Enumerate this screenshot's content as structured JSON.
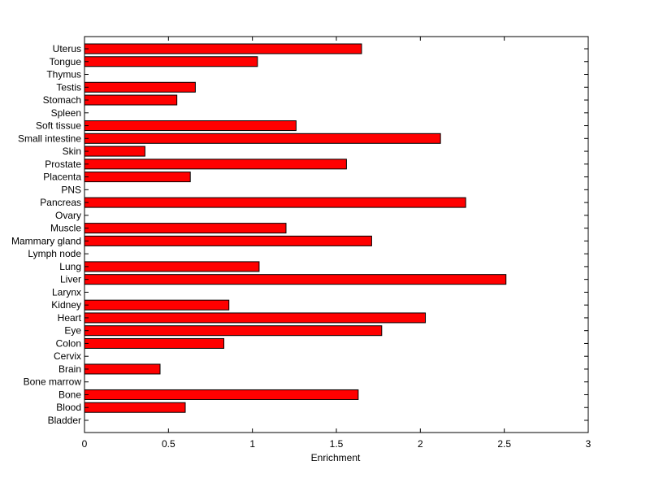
{
  "chart_data": {
    "type": "bar",
    "orientation": "horizontal",
    "title": "",
    "xlabel": "Enrichment",
    "ylabel": "",
    "xlim": [
      0,
      3
    ],
    "xticks": [
      0,
      0.5,
      1,
      1.5,
      2,
      2.5,
      3
    ],
    "xtick_labels": [
      "0",
      "0.5",
      "1",
      "1.5",
      "2",
      "2.5",
      "3"
    ],
    "grid": false,
    "bar_color": "#ff0000",
    "edge_color": "#000000",
    "categories": [
      "Bladder",
      "Blood",
      "Bone",
      "Bone marrow",
      "Brain",
      "Cervix",
      "Colon",
      "Eye",
      "Heart",
      "Kidney",
      "Larynx",
      "Liver",
      "Lung",
      "Lymph node",
      "Mammary gland",
      "Muscle",
      "Ovary",
      "Pancreas",
      "PNS",
      "Placenta",
      "Prostate",
      "Skin",
      "Small intestine",
      "Soft tissue",
      "Spleen",
      "Stomach",
      "Testis",
      "Thymus",
      "Tongue",
      "Uterus"
    ],
    "values": [
      0,
      0.6,
      1.63,
      0,
      0.45,
      0,
      0.83,
      1.77,
      2.03,
      0.86,
      0,
      2.51,
      1.04,
      0,
      1.71,
      1.2,
      0,
      2.27,
      0,
      0.63,
      1.56,
      0.36,
      2.12,
      1.26,
      0,
      0.55,
      0.66,
      0,
      1.03,
      1.65
    ]
  }
}
